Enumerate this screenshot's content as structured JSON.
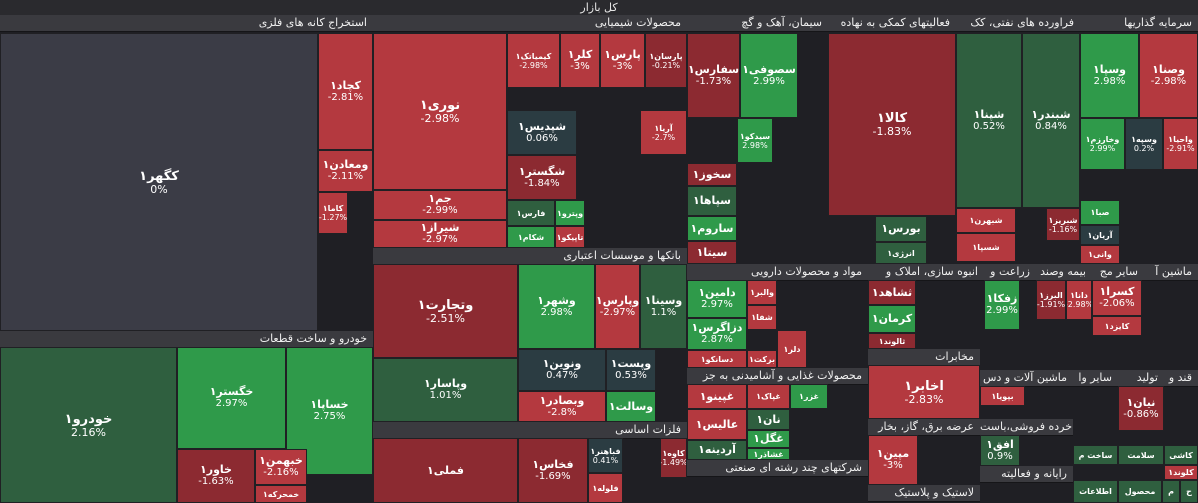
{
  "page_title": "کل بازار",
  "chart_data": {
    "type": "treemap",
    "title": "کل بازار",
    "palette": {
      "dark_red": "#8c2a31",
      "red": "#b4393f",
      "light_red": "#c44a4f",
      "neutral": "#3b3c46",
      "dark_green": "#2f5f3f",
      "green": "#2f9a4a",
      "teal": "#2b3c42"
    },
    "sectors": [
      "استخراج کانه های فلزی",
      "محصولات شیمیایی",
      "سیمان، آهک و گچ",
      "فعالیتهای کمکی به نهاده",
      "فراورده های نفتی، کک",
      "سرمایه گذاریها",
      "بانکها و موسسات اعتباری",
      "خودرو و ساخت قطعات",
      "فلزات اساسی",
      "مواد و محصولات دارویی",
      "انبوه سازی، املاک و",
      "زراعت و",
      "بیمه وصند",
      "سایر مج",
      "ماشین آ",
      "مخابرات",
      "محصولات غذایی و آشامیدنی به جز",
      "ماشین آلات و دس",
      "سایر وا",
      "تولید",
      "قند و",
      "عرضه برق، گاز، بخار",
      "خرده فروشی،باست",
      "رایانه و فعالیته",
      "شرکتهای چند رشته ای صنعتی",
      "لاستیک و پلاستیک"
    ],
    "stocks": [
      {
        "symbol": "کگهر۱",
        "change": "0%",
        "color": "neutral"
      },
      {
        "symbol": "کچاد۱",
        "change": "-2.81%",
        "color": "red"
      },
      {
        "symbol": "ومعادن۱",
        "change": "-2.11%",
        "color": "red"
      },
      {
        "symbol": "کاما۱",
        "change": "-1.27%",
        "color": "red"
      },
      {
        "symbol": "نوری۱",
        "change": "-2.98%",
        "color": "red"
      },
      {
        "symbol": "جم۱",
        "change": "-2.99%",
        "color": "red"
      },
      {
        "symbol": "شیراز۱",
        "change": "-2.97%",
        "color": "red"
      },
      {
        "symbol": "کیمیاتک۱",
        "change": "-2.98%",
        "color": "red"
      },
      {
        "symbol": "کلر۱",
        "change": "-3%",
        "color": "red"
      },
      {
        "symbol": "پارس۱",
        "change": "-3%",
        "color": "red"
      },
      {
        "symbol": "پارسان۱",
        "change": "-0.21%",
        "color": "dark_red"
      },
      {
        "symbol": "شپدیس۱",
        "change": "0.06%",
        "color": "teal"
      },
      {
        "symbol": "شگستر۱",
        "change": "-1.84%",
        "color": "dark_red"
      },
      {
        "symbol": "آریا۱",
        "change": "-2.7%",
        "color": "red"
      },
      {
        "symbol": "فارس۱",
        "change": "",
        "color": "dark_green"
      },
      {
        "symbol": "شکام۱",
        "change": "",
        "color": "green"
      },
      {
        "symbol": "وپترو۱",
        "change": "",
        "color": "green"
      },
      {
        "symbol": "تاپیکو۱",
        "change": "",
        "color": "red"
      },
      {
        "symbol": "سفارس۱",
        "change": "-1.73%",
        "color": "dark_red"
      },
      {
        "symbol": "سصوفی۱",
        "change": "2.99%",
        "color": "green"
      },
      {
        "symbol": "سیدکو۱",
        "change": "2.98%",
        "color": "green"
      },
      {
        "symbol": "سخوز۱",
        "change": "",
        "color": "dark_red"
      },
      {
        "symbol": "سپاها۱",
        "change": "",
        "color": "dark_green"
      },
      {
        "symbol": "ساروم۱",
        "change": "",
        "color": "green"
      },
      {
        "symbol": "سیتا۱",
        "change": "",
        "color": "dark_red"
      },
      {
        "symbol": "کالا۱",
        "change": "-1.83%",
        "color": "dark_red"
      },
      {
        "symbol": "بورس۱",
        "change": "",
        "color": "dark_green"
      },
      {
        "symbol": "انرژی۱",
        "change": "",
        "color": "dark_green"
      },
      {
        "symbol": "شپنا۱",
        "change": "0.52%",
        "color": "dark_green"
      },
      {
        "symbol": "شبندر۱",
        "change": "0.84%",
        "color": "dark_green"
      },
      {
        "symbol": "شبهرن۱",
        "change": "",
        "color": "red"
      },
      {
        "symbol": "شسپا۱",
        "change": "",
        "color": "red"
      },
      {
        "symbol": "شبریز۱",
        "change": "-1.16%",
        "color": "dark_red"
      },
      {
        "symbol": "وسپا۱",
        "change": "2.98%",
        "color": "green"
      },
      {
        "symbol": "وصنا۱",
        "change": "-2.98%",
        "color": "red"
      },
      {
        "symbol": "وخارزم۱",
        "change": "2.99%",
        "color": "green"
      },
      {
        "symbol": "وسپه۱",
        "change": "0.2%",
        "color": "teal"
      },
      {
        "symbol": "واحیا۱",
        "change": "-2.91%",
        "color": "red"
      },
      {
        "symbol": "صبا۱",
        "change": "",
        "color": "green"
      },
      {
        "symbol": "آریان۱",
        "change": "",
        "color": "teal"
      },
      {
        "symbol": "وانی۱",
        "change": "",
        "color": "red"
      },
      {
        "symbol": "وتجارت۱",
        "change": "-2.51%",
        "color": "dark_red"
      },
      {
        "symbol": "وشهر۱",
        "change": "2.98%",
        "color": "green"
      },
      {
        "symbol": "وپارس۱",
        "change": "-2.97%",
        "color": "red"
      },
      {
        "symbol": "وسینا۱",
        "change": "1.1%",
        "color": "dark_green"
      },
      {
        "symbol": "وپاسار۱",
        "change": "1.01%",
        "color": "dark_green"
      },
      {
        "symbol": "ونوین۱",
        "change": "0.47%",
        "color": "teal"
      },
      {
        "symbol": "وپست۱",
        "change": "0.53%",
        "color": "teal"
      },
      {
        "symbol": "وبصادر۱",
        "change": "-2.8%",
        "color": "red"
      },
      {
        "symbol": "وسالت۱",
        "change": "",
        "color": "green"
      },
      {
        "symbol": "خودرو۱",
        "change": "2.16%",
        "color": "dark_green"
      },
      {
        "symbol": "خگستر۱",
        "change": "2.97%",
        "color": "green"
      },
      {
        "symbol": "خساپا۱",
        "change": "2.75%",
        "color": "green"
      },
      {
        "symbol": "خاور۱",
        "change": "-1.63%",
        "color": "dark_red"
      },
      {
        "symbol": "خبهمن۱",
        "change": "-2.16%",
        "color": "red"
      },
      {
        "symbol": "خمحرکه۱",
        "change": "",
        "color": "red"
      },
      {
        "symbol": "فملی۱",
        "change": "",
        "color": "dark_red"
      },
      {
        "symbol": "فخاس۱",
        "change": "-1.69%",
        "color": "dark_red"
      },
      {
        "symbol": "فباهنر۱",
        "change": "0.41%",
        "color": "teal"
      },
      {
        "symbol": "فلوله۱",
        "change": "",
        "color": "red"
      },
      {
        "symbol": "کاوه۱",
        "change": "-1.49%",
        "color": "dark_red"
      },
      {
        "symbol": "دامین۱",
        "change": "2.97%",
        "color": "green"
      },
      {
        "symbol": "دزاگرس۱",
        "change": "2.87%",
        "color": "green"
      },
      {
        "symbol": "دسانکو۱",
        "change": "",
        "color": "red"
      },
      {
        "symbol": "والبر۱",
        "change": "",
        "color": "red"
      },
      {
        "symbol": "شفا۱",
        "change": "",
        "color": "red"
      },
      {
        "symbol": "دلر۱",
        "change": "",
        "color": "red"
      },
      {
        "symbol": "برکت۱",
        "change": "",
        "color": "red"
      },
      {
        "symbol": "ثشاهد۱",
        "change": "",
        "color": "dark_red"
      },
      {
        "symbol": "کرمان۱",
        "change": "",
        "color": "green"
      },
      {
        "symbol": "ثالوند۱",
        "change": "",
        "color": "dark_red"
      },
      {
        "symbol": "زفکا۱",
        "change": "2.99%",
        "color": "green"
      },
      {
        "symbol": "البرز۱",
        "change": "-1.91%",
        "color": "dark_red"
      },
      {
        "symbol": "دانا۱",
        "change": "-2.98%",
        "color": "red"
      },
      {
        "symbol": "کسرا۱",
        "change": "-2.06%",
        "color": "red"
      },
      {
        "symbol": "کایزد۱",
        "change": "",
        "color": "red"
      },
      {
        "symbol": "اخابر۱",
        "change": "-2.83%",
        "color": "red"
      },
      {
        "symbol": "غپینو۱",
        "change": "",
        "color": "red"
      },
      {
        "symbol": "غپاک۱",
        "change": "",
        "color": "red"
      },
      {
        "symbol": "غزر۱",
        "change": "",
        "color": "green"
      },
      {
        "symbol": "نان۱",
        "change": "",
        "color": "dark_green"
      },
      {
        "symbol": "غگل۱",
        "change": "",
        "color": "green"
      },
      {
        "symbol": "عالیس۱",
        "change": "",
        "color": "red"
      },
      {
        "symbol": "آردینه۱",
        "change": "",
        "color": "dark_green"
      },
      {
        "symbol": "غشاذر۱",
        "change": "",
        "color": "green"
      },
      {
        "symbol": "بپویا۱",
        "change": "",
        "color": "red"
      },
      {
        "symbol": "نیان۱",
        "change": "-0.86%",
        "color": "dark_red"
      },
      {
        "symbol": "مپین۱",
        "change": "-3%",
        "color": "red"
      },
      {
        "symbol": "افق۱",
        "change": "0.9%",
        "color": "dark_green"
      },
      {
        "symbol": "ساخت م",
        "change": "",
        "color": "dark_green"
      },
      {
        "symbol": "سلامت",
        "change": "",
        "color": "dark_green"
      },
      {
        "symbol": "کاشی",
        "change": "",
        "color": "dark_green"
      },
      {
        "symbol": "کلوند۱",
        "change": "",
        "color": "red"
      },
      {
        "symbol": "اطلاعات",
        "change": "",
        "color": "dark_green"
      },
      {
        "symbol": "محصول",
        "change": "",
        "color": "dark_green"
      },
      {
        "symbol": "م",
        "change": "",
        "color": "dark_green"
      },
      {
        "symbol": "ح",
        "change": "",
        "color": "dark_green"
      }
    ]
  }
}
